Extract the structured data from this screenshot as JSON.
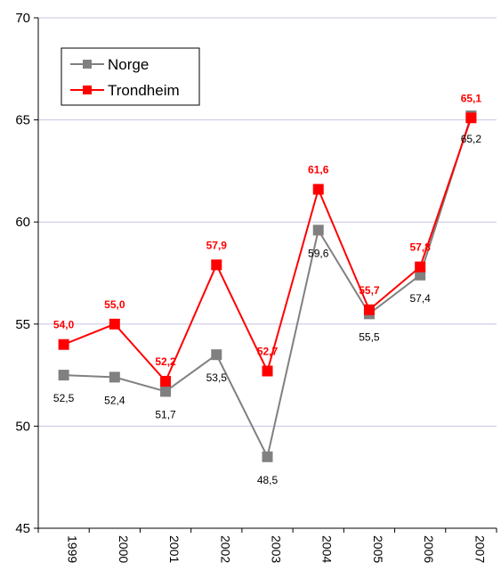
{
  "chart_data": {
    "type": "line",
    "categories": [
      "1999",
      "2000",
      "2001",
      "2002",
      "2003",
      "2004",
      "2005",
      "2006",
      "2007"
    ],
    "ylim": [
      45,
      70
    ],
    "yticks": [
      45,
      50,
      55,
      60,
      65,
      70
    ],
    "grid": true,
    "legend_position": "top-left",
    "series": [
      {
        "name": "Norge",
        "color": "#808080",
        "values": [
          52.5,
          52.4,
          51.7,
          53.5,
          48.5,
          59.6,
          55.5,
          57.4,
          65.2
        ],
        "labels": [
          "52,5",
          "52,4",
          "51,7",
          "53,5",
          "48,5",
          "59,6",
          "55,5",
          "57,4",
          "65,2"
        ]
      },
      {
        "name": "Trondheim",
        "color": "#ff0000",
        "values": [
          54.0,
          55.0,
          52.2,
          57.9,
          52.7,
          61.6,
          55.7,
          57.8,
          65.1
        ],
        "labels": [
          "54,0",
          "55,0",
          "52,2",
          "57,9",
          "52,7",
          "61,6",
          "55,7",
          "57,8",
          "65,1"
        ]
      }
    ]
  }
}
